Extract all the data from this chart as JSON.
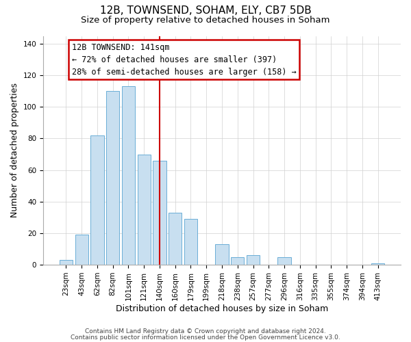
{
  "title": "12B, TOWNSEND, SOHAM, ELY, CB7 5DB",
  "subtitle": "Size of property relative to detached houses in Soham",
  "xlabel": "Distribution of detached houses by size in Soham",
  "ylabel": "Number of detached properties",
  "bar_labels": [
    "23sqm",
    "43sqm",
    "62sqm",
    "82sqm",
    "101sqm",
    "121sqm",
    "140sqm",
    "160sqm",
    "179sqm",
    "199sqm",
    "218sqm",
    "238sqm",
    "257sqm",
    "277sqm",
    "296sqm",
    "316sqm",
    "335sqm",
    "355sqm",
    "374sqm",
    "394sqm",
    "413sqm"
  ],
  "bar_values": [
    3,
    19,
    82,
    110,
    113,
    70,
    66,
    33,
    29,
    0,
    13,
    5,
    6,
    0,
    5,
    0,
    0,
    0,
    0,
    0,
    1
  ],
  "bar_color": "#c8dff0",
  "bar_edge_color": "#6aaed6",
  "vline_color": "#cc0000",
  "annotation_title": "12B TOWNSEND: 141sqm",
  "annotation_line1": "← 72% of detached houses are smaller (397)",
  "annotation_line2": "28% of semi-detached houses are larger (158) →",
  "annotation_box_color": "#ffffff",
  "annotation_box_edge": "#cc0000",
  "footer1": "Contains HM Land Registry data © Crown copyright and database right 2024.",
  "footer2": "Contains public sector information licensed under the Open Government Licence v3.0.",
  "ylim": [
    0,
    145
  ],
  "yticks": [
    0,
    20,
    40,
    60,
    80,
    100,
    120,
    140
  ],
  "title_fontsize": 11,
  "subtitle_fontsize": 9.5,
  "axis_label_fontsize": 9,
  "tick_fontsize": 7.5,
  "footer_fontsize": 6.5,
  "annotation_fontsize": 8.5
}
